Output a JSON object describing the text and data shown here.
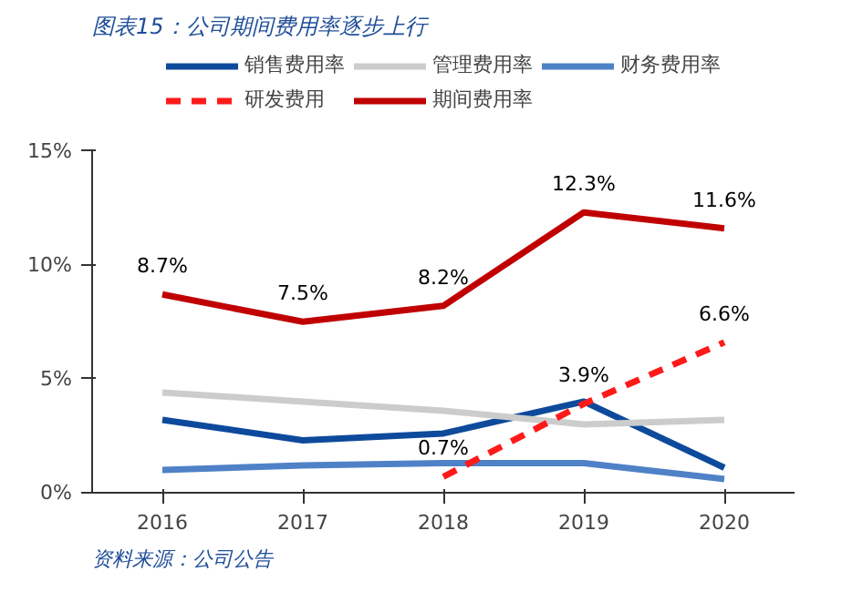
{
  "chart_data": {
    "type": "line",
    "title": "图表15：公司期间费用率逐步上行",
    "annotations": [
      "资料来源：公司公告"
    ],
    "categories": [
      "2016",
      "2017",
      "2018",
      "2019",
      "2020"
    ],
    "ylim": [
      0,
      15
    ],
    "yticks": [
      {
        "value": 0,
        "label": "0%"
      },
      {
        "value": 5,
        "label": "5%"
      },
      {
        "value": 10,
        "label": "10%"
      },
      {
        "value": 15,
        "label": "15%"
      }
    ],
    "grid": false,
    "legend": "top",
    "line_style": "solid",
    "marker": "none",
    "series": [
      {
        "name": "销售费用率",
        "color": "#0e4a9c",
        "values": [
          3.2,
          2.3,
          2.6,
          4.0,
          1.1
        ]
      },
      {
        "name": "管理费用率",
        "color": "#cccccc",
        "values": [
          4.4,
          4.0,
          3.6,
          3.0,
          3.2
        ]
      },
      {
        "name": "财务费用率",
        "color": "#4f81c7",
        "values": [
          1.0,
          1.2,
          1.3,
          1.3,
          0.6
        ]
      },
      {
        "name": "研发费用",
        "color": "#ff1a1a",
        "line_style": "dashed",
        "values": [
          null,
          null,
          0.7,
          3.9,
          6.6
        ],
        "value_labels": [
          null,
          null,
          "0.7%",
          "3.9%",
          "6.6%"
        ]
      },
      {
        "name": "期间费用率",
        "color": "#c00000",
        "values": [
          8.7,
          7.5,
          8.2,
          12.3,
          11.6
        ],
        "value_labels": [
          "8.7%",
          "7.5%",
          "8.2%",
          "12.3%",
          "11.6%"
        ]
      }
    ]
  }
}
